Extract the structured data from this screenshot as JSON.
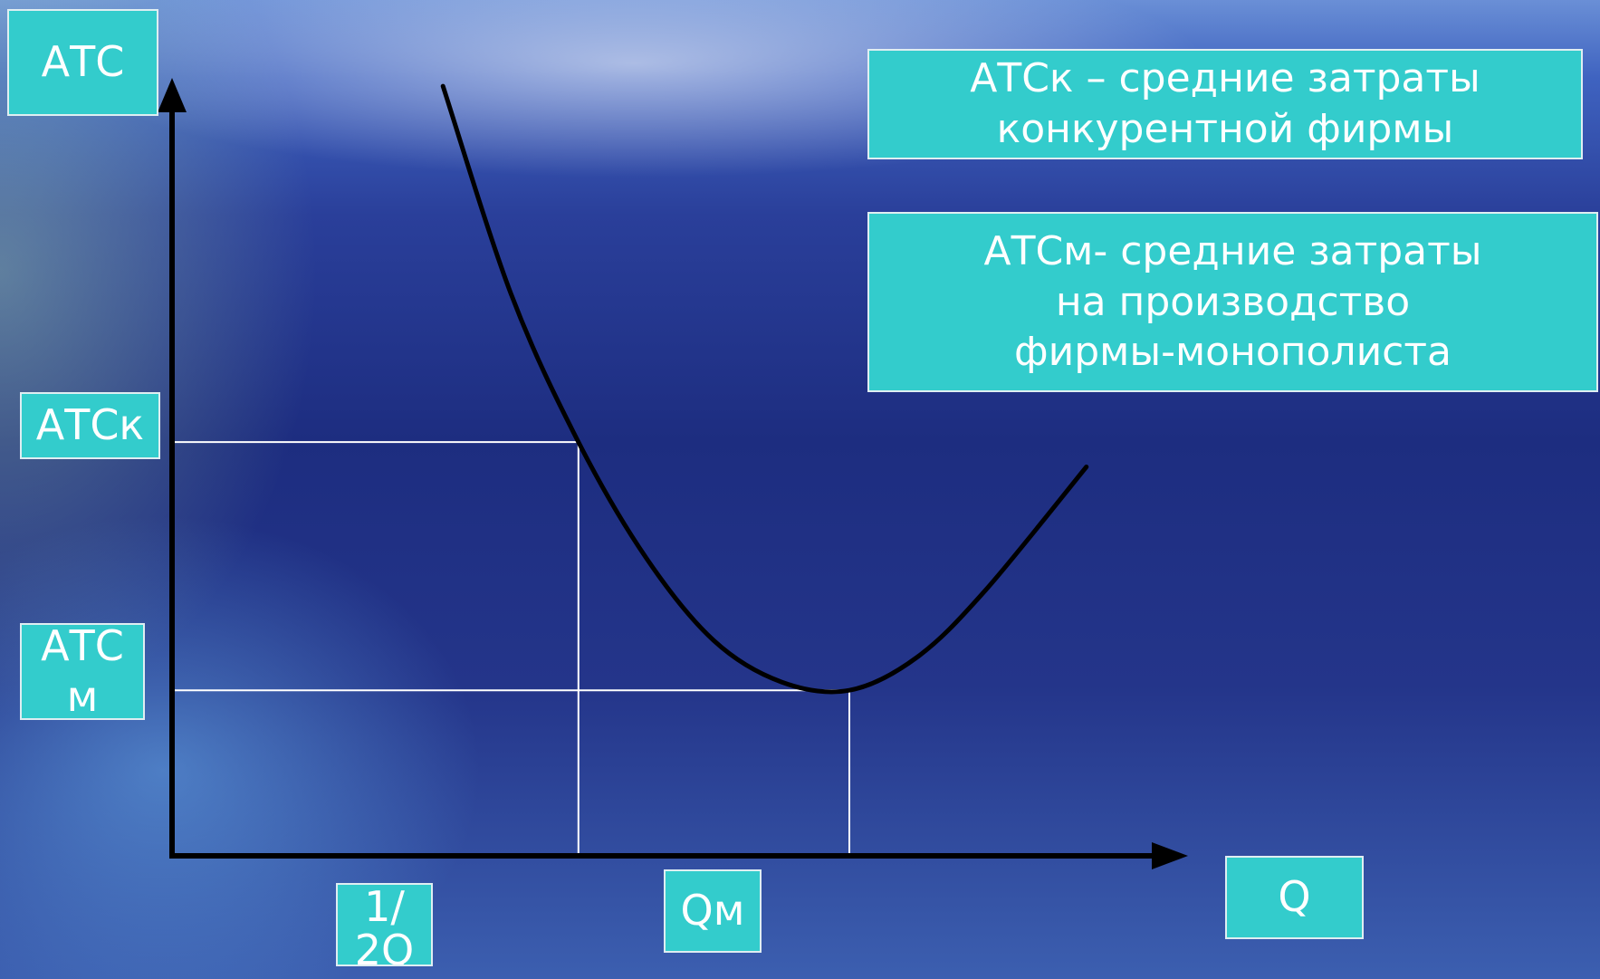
{
  "chart_data": {
    "type": "line",
    "title": "",
    "ylabel": "АТС",
    "xlabel": "Q",
    "series": [
      {
        "name": "",
        "x": [
          0.4,
          0.5,
          0.6,
          0.7,
          0.8,
          0.9,
          1.0,
          1.1,
          1.2,
          1.35
        ],
        "y": [
          4.65,
          3.4,
          2.5,
          1.8,
          1.3,
          1.05,
          1.0,
          1.2,
          1.6,
          2.35
        ]
      }
    ],
    "xlim": [
      0,
      1.5
    ],
    "ylim": [
      0,
      4.7
    ],
    "grid": false,
    "axis_marks": [
      {
        "axis": "y",
        "label": "АТСк",
        "value": 2.5
      },
      {
        "axis": "y",
        "label": "АТС м",
        "value": 1.0
      },
      {
        "axis": "x",
        "label": "1/ 2Q",
        "value": 0.6
      },
      {
        "axis": "x",
        "label": "Qм",
        "value": 1.0
      }
    ],
    "legend_notes": [
      "АТСк – средние затраты\nконкурентной фирмы",
      "АТСм- средние затраты\nна производство\nфирмы-монополиста"
    ]
  },
  "colors": {
    "label_box": "#33cccc",
    "curve": "#000000",
    "guides": "#ffffff"
  }
}
